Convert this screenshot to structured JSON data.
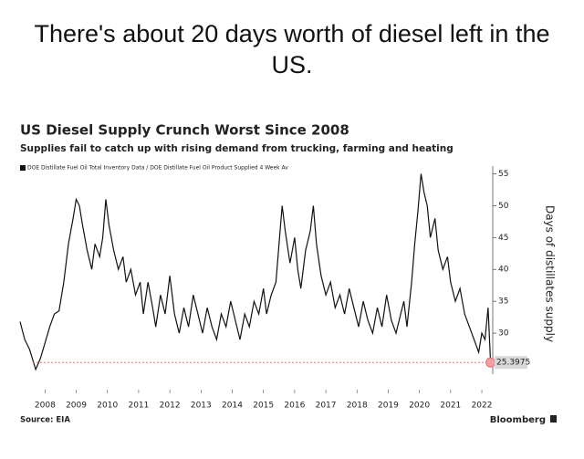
{
  "caption": "There's about 20 days worth of diesel left in the US.",
  "chart_data": {
    "type": "line",
    "title": "US Diesel Supply Crunch Worst Since 2008",
    "subtitle": "Supplies fail to catch up with rising demand from trucking, farming and heating",
    "y_label": "Days of distillates supply",
    "source": "Source: EIA",
    "credit": "Bloomberg",
    "yaxis_position": "right",
    "x": [
      2007.2,
      2007.35,
      2007.5,
      2007.7,
      2007.85,
      2008.0,
      2008.15,
      2008.3,
      2008.45,
      2008.6,
      2008.75,
      2008.9,
      2009.0,
      2009.1,
      2009.2,
      2009.35,
      2009.5,
      2009.6,
      2009.75,
      2009.85,
      2009.95,
      2010.05,
      2010.2,
      2010.35,
      2010.5,
      2010.6,
      2010.75,
      2010.9,
      2011.05,
      2011.15,
      2011.3,
      2011.45,
      2011.55,
      2011.7,
      2011.85,
      2012.0,
      2012.15,
      2012.3,
      2012.45,
      2012.6,
      2012.75,
      2012.9,
      2013.05,
      2013.2,
      2013.35,
      2013.5,
      2013.65,
      2013.8,
      2013.95,
      2014.1,
      2014.25,
      2014.4,
      2014.55,
      2014.7,
      2014.85,
      2015.0,
      2015.1,
      2015.25,
      2015.4,
      2015.5,
      2015.6,
      2015.7,
      2015.85,
      2016.0,
      2016.1,
      2016.2,
      2016.35,
      2016.5,
      2016.6,
      2016.7,
      2016.85,
      2017.0,
      2017.15,
      2017.3,
      2017.45,
      2017.6,
      2017.75,
      2017.9,
      2018.05,
      2018.2,
      2018.35,
      2018.5,
      2018.65,
      2018.8,
      2018.95,
      2019.1,
      2019.25,
      2019.4,
      2019.5,
      2019.6,
      2019.75,
      2019.85,
      2019.95,
      2020.05,
      2020.15,
      2020.25,
      2020.35,
      2020.5,
      2020.6,
      2020.75,
      2020.9,
      2021.0,
      2021.15,
      2021.3,
      2021.45,
      2021.6,
      2021.75,
      2021.9,
      2022.0,
      2022.1,
      2022.2,
      2022.28
    ],
    "series": [
      {
        "name": "DOE Distillate Fuel Oil Total Inventory Data / DOE Distillate Fuel Oil Product Supplied 4 Week Av",
        "color": "#111111",
        "values": [
          31.8,
          29,
          27.5,
          24.3,
          26,
          28.5,
          31,
          33,
          33.5,
          38,
          44,
          48,
          51,
          50,
          47,
          43,
          40,
          44,
          42,
          45,
          51,
          47,
          43,
          40,
          42,
          38,
          40,
          36,
          38,
          33,
          38,
          34,
          31,
          36,
          33,
          39,
          33,
          30,
          34,
          31,
          36,
          33,
          30,
          34,
          31,
          29,
          33,
          31,
          35,
          32,
          29,
          33,
          31,
          35,
          33,
          37,
          33,
          36,
          38,
          44,
          50,
          46,
          41,
          45,
          40,
          37,
          43,
          46,
          50,
          44,
          39,
          36,
          38,
          34,
          36,
          33,
          37,
          34,
          31,
          35,
          32,
          30,
          34,
          31,
          36,
          32,
          30,
          33,
          35,
          31,
          38,
          44,
          49,
          55,
          52,
          50,
          45,
          48,
          43,
          40,
          42,
          38,
          35,
          37,
          33,
          31,
          29,
          27,
          30,
          29,
          34,
          25.3975
        ]
      }
    ],
    "xlim": [
      2007.2,
      2022.35
    ],
    "xticks": [
      2008,
      2009,
      2010,
      2011,
      2012,
      2013,
      2014,
      2015,
      2016,
      2017,
      2018,
      2019,
      2020,
      2021,
      2022
    ],
    "ylim": [
      24,
      56.5
    ],
    "yticks": [
      30,
      35,
      40,
      45,
      50,
      55
    ]
  }
}
